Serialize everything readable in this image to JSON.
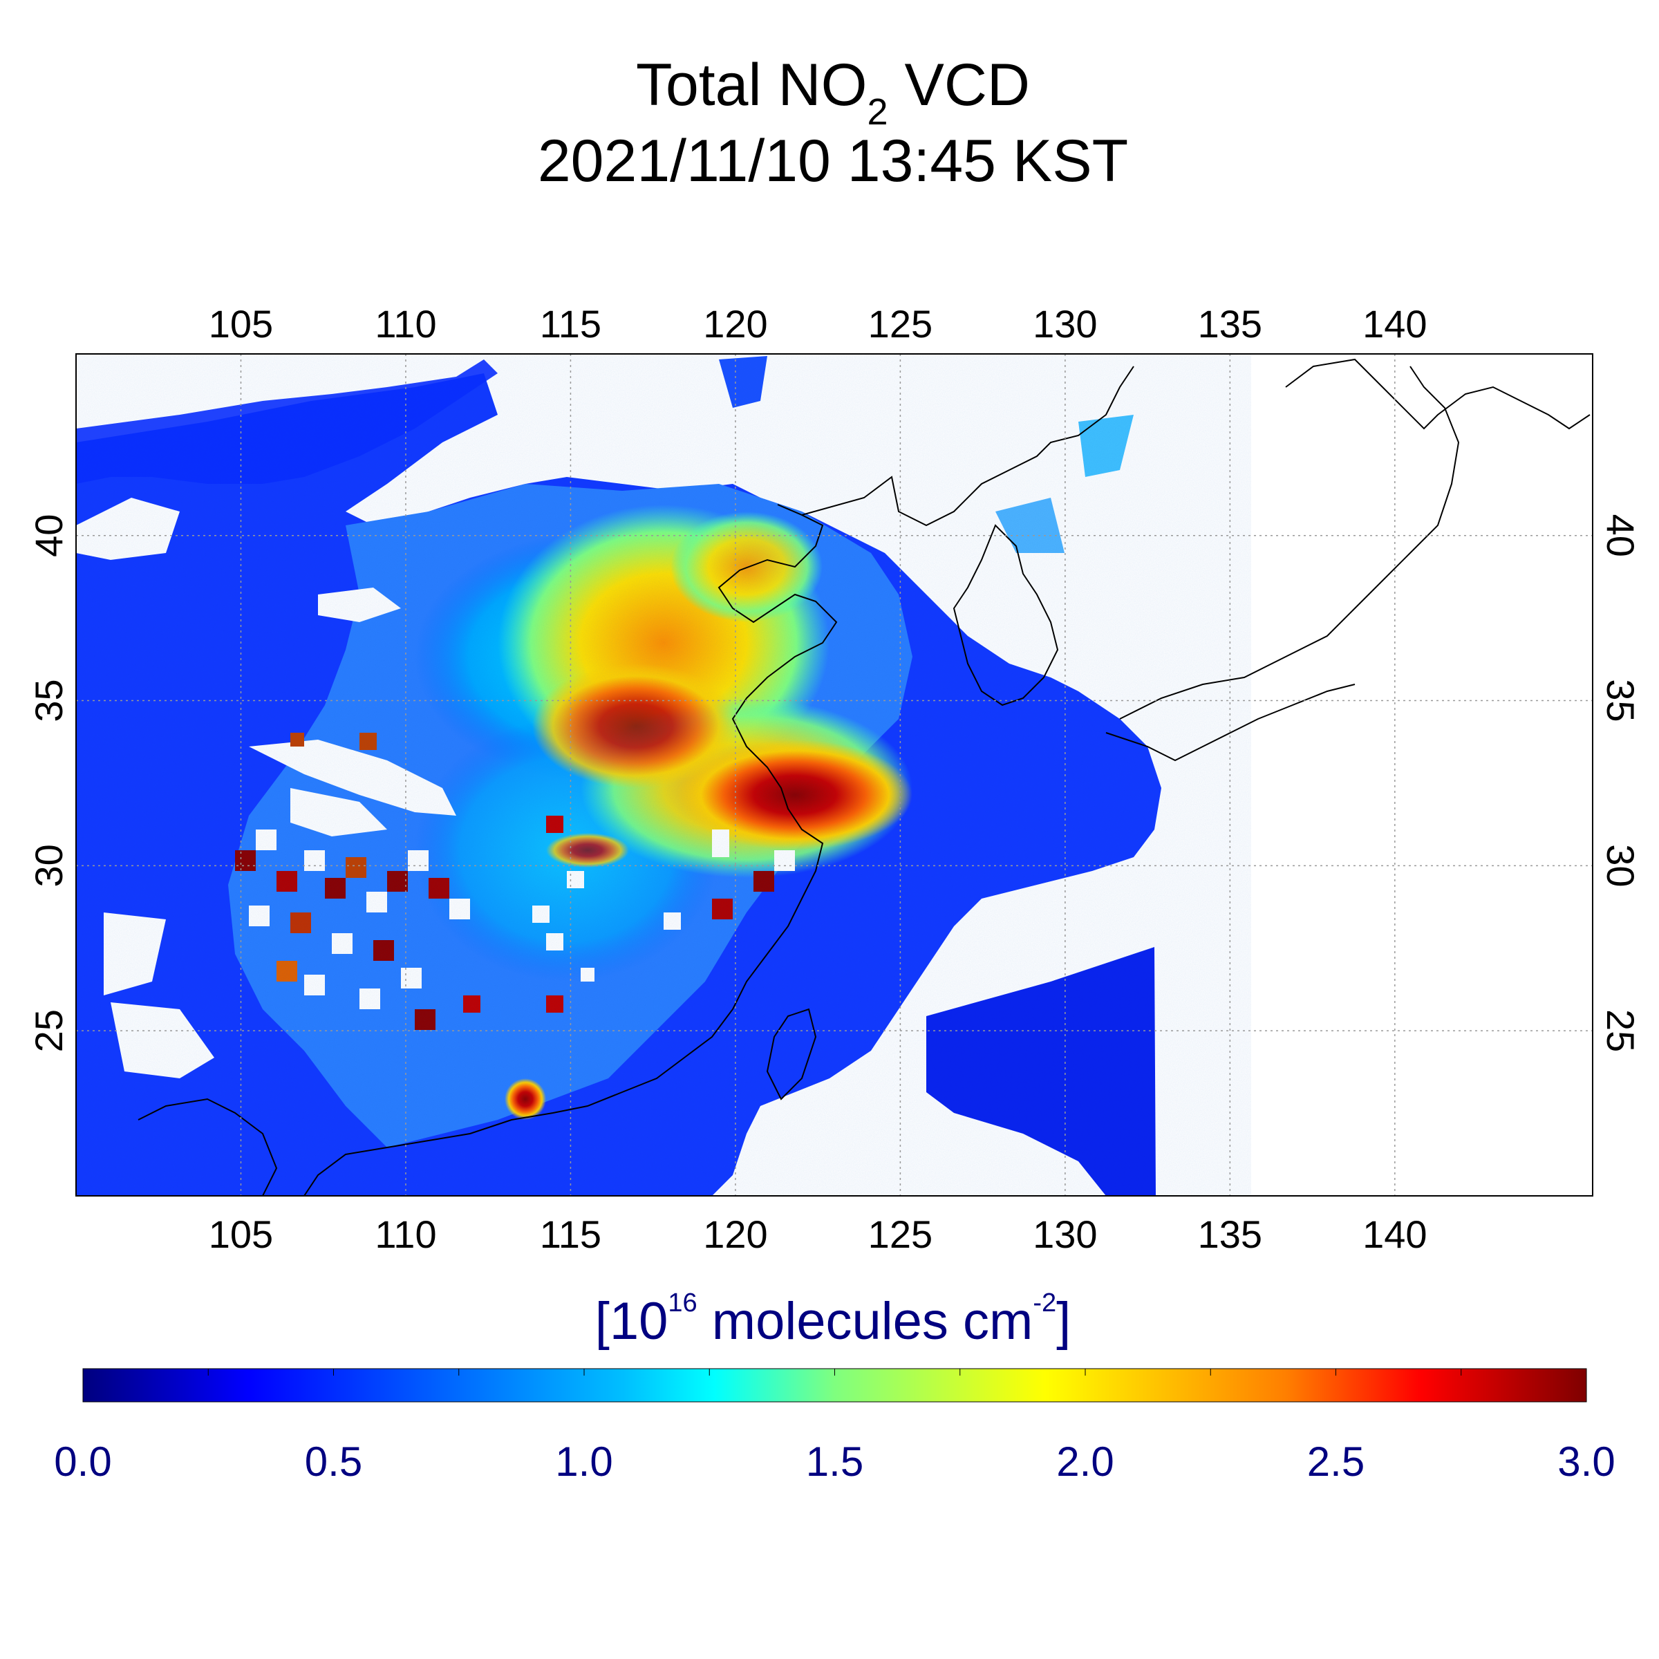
{
  "title": {
    "line1_main": "Total NO",
    "line1_sub": "2",
    "line1_end": " VCD",
    "line2": "2021/11/10 13:45 KST"
  },
  "map": {
    "lon_range": [
      100,
      146
    ],
    "lat_range": [
      20,
      45.5
    ],
    "lon_ticks": [
      {
        "value": 105,
        "label": "105"
      },
      {
        "value": 110,
        "label": "110"
      },
      {
        "value": 115,
        "label": "115"
      },
      {
        "value": 120,
        "label": "120"
      },
      {
        "value": 125,
        "label": "125"
      },
      {
        "value": 130,
        "label": "130"
      },
      {
        "value": 135,
        "label": "135"
      },
      {
        "value": 140,
        "label": "140"
      }
    ],
    "lat_ticks": [
      {
        "value": 25,
        "label": "25"
      },
      {
        "value": 30,
        "label": "30"
      },
      {
        "value": 35,
        "label": "35"
      },
      {
        "value": 40,
        "label": "40"
      }
    ],
    "grid": "dotted"
  },
  "colorbar": {
    "label_main": "[10",
    "label_exp": "16",
    "label_mid": " molecules cm",
    "label_exp2": "-2",
    "label_end": "]",
    "min": 0.0,
    "max": 3.0,
    "ticks": [
      {
        "value": 0.0,
        "label": "0.0"
      },
      {
        "value": 0.5,
        "label": "0.5"
      },
      {
        "value": 1.0,
        "label": "1.0"
      },
      {
        "value": 1.5,
        "label": "1.5"
      },
      {
        "value": 2.0,
        "label": "2.0"
      },
      {
        "value": 2.5,
        "label": "2.5"
      },
      {
        "value": 3.0,
        "label": "3.0"
      }
    ],
    "colors": [
      "#00007f",
      "#0000ff",
      "#007fff",
      "#00ffff",
      "#7fff7f",
      "#ffff00",
      "#ff7f00",
      "#ff0000",
      "#7f0000"
    ],
    "label_color": "#000080"
  }
}
